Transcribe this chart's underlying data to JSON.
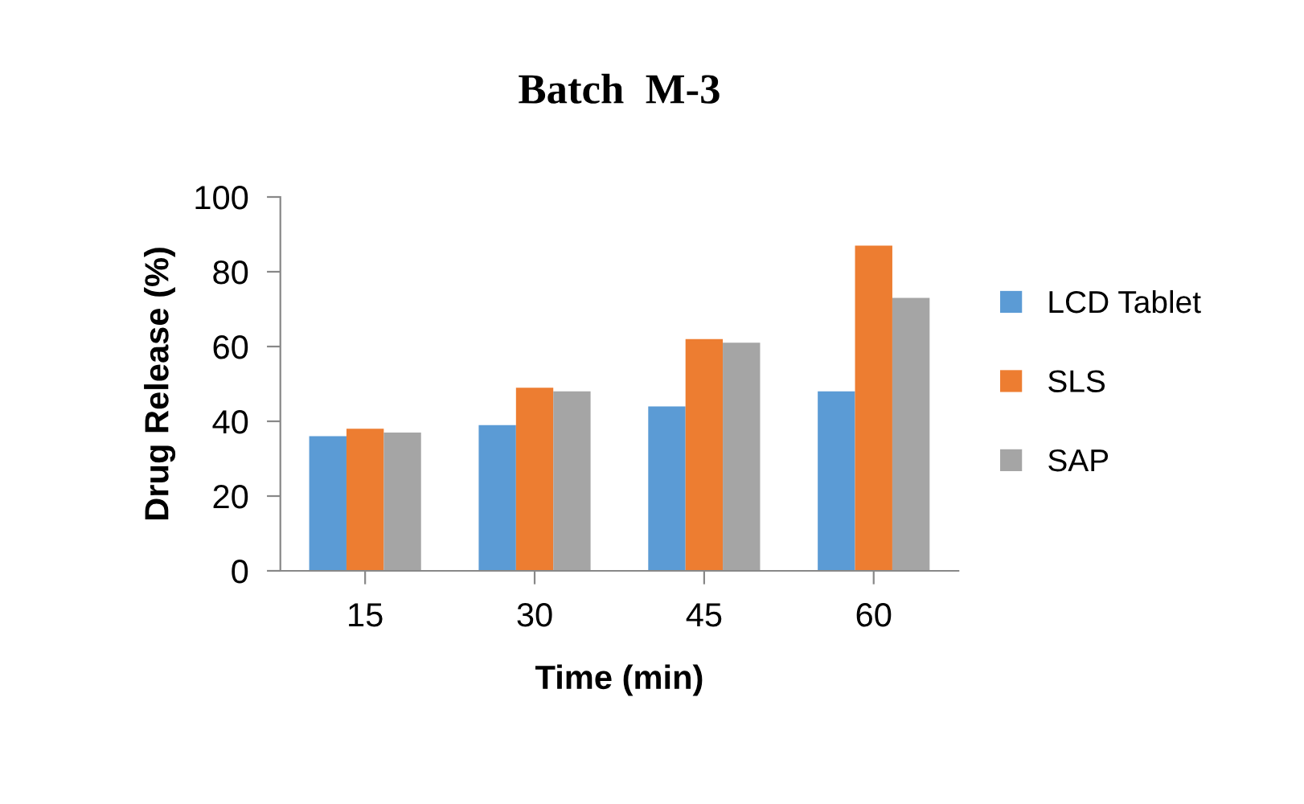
{
  "chart_data": {
    "type": "bar",
    "title": "Batch  M-3",
    "xlabel": "Time (min)",
    "ylabel": "Drug Release (%)",
    "categories": [
      "15",
      "30",
      "45",
      "60"
    ],
    "series": [
      {
        "name": "LCD Tablet",
        "color": "#5b9bd5",
        "values": [
          36,
          39,
          44,
          48
        ]
      },
      {
        "name": "SLS",
        "color": "#ed7d31",
        "values": [
          38,
          49,
          62,
          87
        ]
      },
      {
        "name": "SAP",
        "color": "#a5a5a5",
        "values": [
          37,
          48,
          61,
          73
        ]
      }
    ],
    "ylim": [
      0,
      100
    ],
    "yticks": [
      0,
      20,
      40,
      60,
      80,
      100
    ],
    "grid": false,
    "legend": "right"
  }
}
